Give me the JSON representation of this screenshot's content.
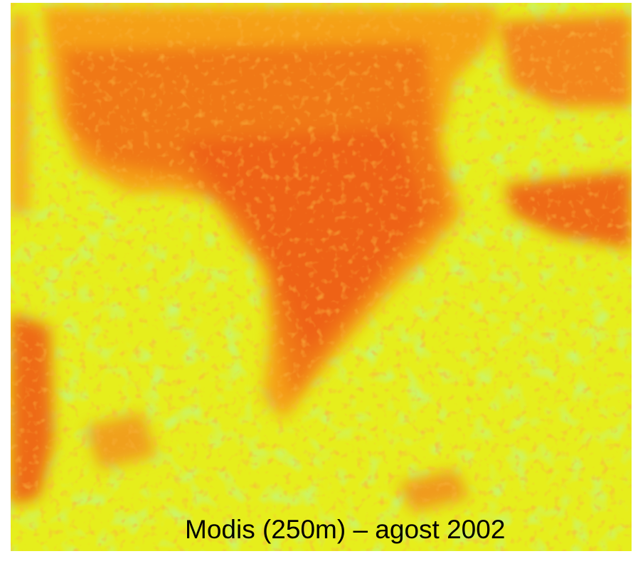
{
  "caption": "Modis (250m) – agost 2002"
}
